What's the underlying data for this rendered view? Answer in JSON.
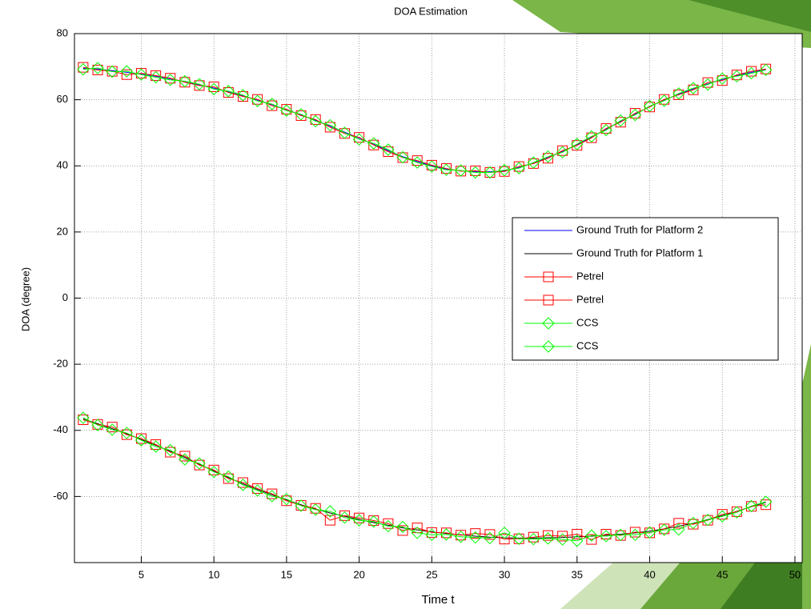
{
  "chart_data": {
    "type": "line",
    "title": "DOA Estimation",
    "x_label": "Time t",
    "y_label": "DOA (degree)",
    "x": [
      1,
      2,
      3,
      4,
      5,
      6,
      7,
      8,
      9,
      10,
      11,
      12,
      13,
      14,
      15,
      16,
      17,
      18,
      19,
      20,
      21,
      22,
      23,
      24,
      25,
      26,
      27,
      28,
      29,
      30,
      31,
      32,
      33,
      34,
      35,
      36,
      37,
      38,
      39,
      40,
      41,
      42,
      43,
      44,
      45,
      46,
      47,
      48
    ],
    "xlim": [
      0.4,
      50.5
    ],
    "xticks": [
      5,
      10,
      15,
      20,
      25,
      30,
      35,
      40,
      45,
      50
    ],
    "ylim": [
      -80,
      80
    ],
    "yticks": [
      -60,
      -40,
      -20,
      0,
      20,
      40,
      60,
      80
    ],
    "grid": true,
    "legend": "right",
    "series": [
      {
        "name": "Ground Truth for Platform 2",
        "color": "#0000ff",
        "marker": "none",
        "values": [
          69.5,
          69.3,
          68.8,
          68.3,
          67.8,
          67.1,
          66.3,
          65.5,
          64.5,
          63.5,
          62.4,
          61.2,
          59.9,
          58.5,
          57.0,
          55.4,
          53.8,
          52.0,
          50.2,
          48.4,
          46.5,
          44.6,
          42.8,
          41.3,
          40.0,
          39.0,
          38.5,
          38.2,
          38.2,
          38.5,
          39.5,
          40.8,
          42.5,
          44.3,
          46.4,
          48.7,
          51.1,
          53.5,
          55.7,
          57.9,
          59.9,
          61.7,
          63.3,
          64.8,
          66.1,
          67.3,
          68.3,
          69.1
        ]
      },
      {
        "name": "Ground Truth for Platform 1",
        "color": "#000000",
        "marker": "none",
        "values": [
          -36.5,
          -38,
          -39.5,
          -41,
          -42.8,
          -44.5,
          -46.3,
          -48.2,
          -50.3,
          -52.3,
          -54.3,
          -56.2,
          -57.9,
          -59.5,
          -61,
          -62.5,
          -63.8,
          -65,
          -66,
          -67,
          -67.9,
          -68.7,
          -69.5,
          -70.1,
          -70.7,
          -71.2,
          -71.6,
          -72,
          -72.3,
          -72.5,
          -72.6,
          -72.6,
          -72.5,
          -72.4,
          -72.2,
          -72,
          -71.7,
          -71.4,
          -71,
          -70.5,
          -69.8,
          -69,
          -68.1,
          -67,
          -65.8,
          -64.5,
          -63.1,
          -61.8
        ]
      },
      {
        "name": "Petrel",
        "color": "#ff0000",
        "marker": "square",
        "values": [
          69.8,
          69.0,
          68.6,
          67.6,
          68.0,
          67.3,
          66.5,
          65.3,
          64.3,
          63.9,
          62.2,
          61.0,
          60.1,
          58.2,
          57.1,
          55.2,
          54.0,
          51.7,
          49.8,
          48.6,
          46.3,
          44.3,
          42.5,
          41.6,
          40.2,
          39.2,
          38.4,
          38.5,
          38.0,
          38.3,
          39.8,
          40.7,
          42.3,
          44.6,
          46.2,
          48.5,
          51.3,
          53.2,
          55.9,
          57.8,
          60.1,
          61.5,
          63.0,
          65.2,
          65.8,
          67.5,
          68.6,
          69.3
        ]
      },
      {
        "name": "Petrel",
        "color": "#ff0000",
        "marker": "square",
        "values": [
          -36.8,
          -38.2,
          -39.0,
          -41.3,
          -42.5,
          -44.3,
          -46.6,
          -47.8,
          -50.5,
          -52.0,
          -54.6,
          -55.8,
          -57.6,
          -59.2,
          -61.3,
          -62.7,
          -63.6,
          -67.2,
          -65.8,
          -66.5,
          -67.3,
          -68.2,
          -70.3,
          -69.5,
          -70.9,
          -71.0,
          -71.7,
          -71.2,
          -71.5,
          -72.9,
          -72.8,
          -72.3,
          -71.8,
          -72.0,
          -71.4,
          -73.0,
          -71.4,
          -71.8,
          -70.8,
          -71.0,
          -69.8,
          -68.1,
          -68.4,
          -67.2,
          -65.4,
          -64.6,
          -63.0,
          -62.5
        ]
      },
      {
        "name": "CCS",
        "color": "#00ff00",
        "marker": "diamond",
        "values": [
          69.2,
          69.6,
          68.5,
          68.6,
          67.6,
          66.8,
          66.0,
          65.6,
          64.7,
          63.2,
          62.6,
          61.4,
          59.6,
          58.7,
          56.7,
          55.6,
          53.5,
          52.3,
          50.0,
          48.0,
          46.8,
          44.9,
          42.6,
          41.0,
          39.8,
          38.8,
          38.6,
          38.0,
          38.0,
          38.7,
          39.3,
          41.0,
          42.8,
          44.1,
          46.6,
          48.9,
          50.8,
          53.7,
          55.4,
          58.1,
          59.7,
          61.9,
          63.5,
          64.6,
          66.4,
          67.1,
          68.0,
          69.0
        ]
      },
      {
        "name": "CCS",
        "color": "#00ff00",
        "marker": "diamond",
        "values": [
          -36.2,
          -38.4,
          -39.8,
          -40.8,
          -43.0,
          -44.9,
          -46.0,
          -48.8,
          -50.0,
          -52.6,
          -54.0,
          -56.5,
          -58.2,
          -59.9,
          -60.8,
          -62.8,
          -64.0,
          -64.5,
          -66.4,
          -67.2,
          -67.6,
          -69.0,
          -69.2,
          -71.0,
          -71.6,
          -71.5,
          -72.2,
          -72.4,
          -72.6,
          -71.0,
          -72.8,
          -72.9,
          -72.7,
          -73.0,
          -73.4,
          -71.8,
          -72.0,
          -71.6,
          -71.6,
          -70.9,
          -70.1,
          -70.0,
          -68.0,
          -67.1,
          -66.0,
          -64.8,
          -62.9,
          -61.6
        ]
      }
    ]
  }
}
